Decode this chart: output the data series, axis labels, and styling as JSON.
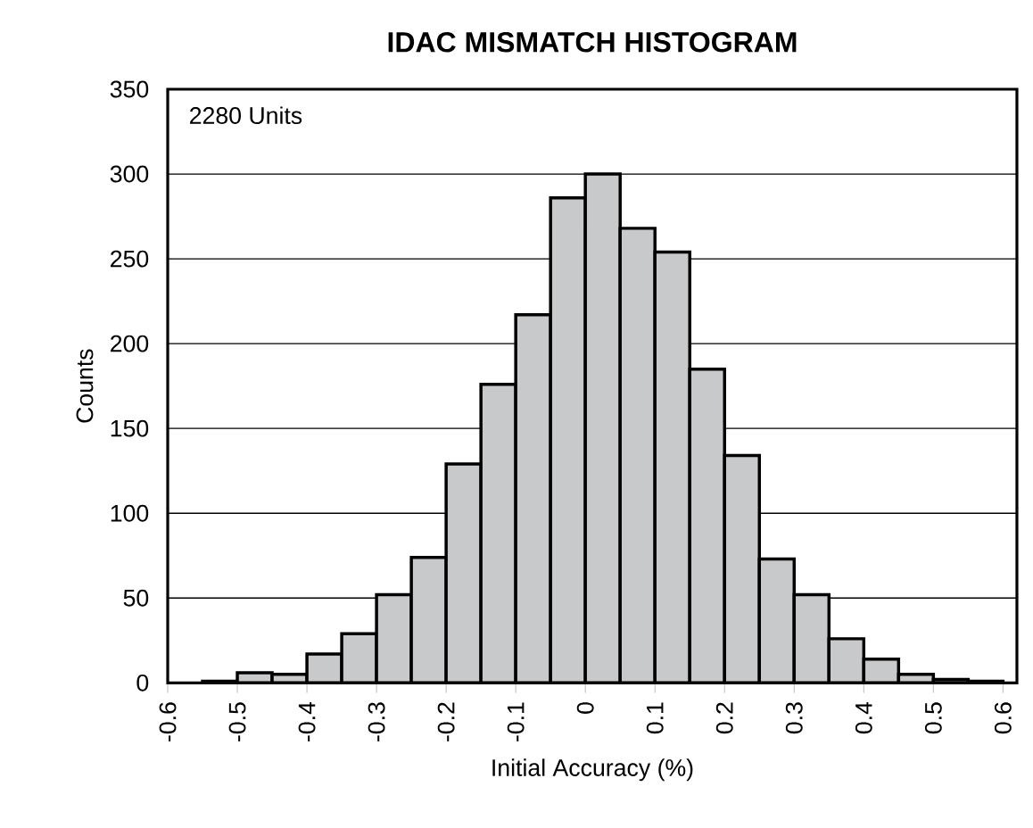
{
  "chart_data": {
    "type": "histogram",
    "title": "IDAC MISMATCH HISTOGRAM",
    "xlabel": "Initial Accuracy (%)",
    "ylabel": "Counts",
    "annotations": [
      "2280 Units"
    ],
    "bins": [
      -0.6,
      -0.55,
      -0.5,
      -0.45,
      -0.4,
      -0.35,
      -0.3,
      -0.25,
      -0.2,
      -0.15,
      -0.1,
      -0.05,
      0,
      0.05,
      0.1,
      0.15,
      0.2,
      0.25,
      0.3,
      0.35,
      0.4,
      0.45,
      0.5,
      0.55,
      0.6
    ],
    "values": [
      null,
      1,
      6,
      5,
      17,
      29,
      52,
      74,
      129,
      176,
      217,
      286,
      300,
      268,
      254,
      185,
      134,
      73,
      52,
      26,
      14,
      5,
      2,
      1
    ],
    "color": "#c8c9cb",
    "xlim": [
      -0.6,
      0.62
    ],
    "ylim": [
      0,
      350
    ],
    "xticks": [
      -0.6,
      -0.5,
      -0.4,
      -0.3,
      -0.2,
      -0.1,
      0,
      0.1,
      0.2,
      0.3,
      0.4,
      0.5,
      0.6
    ],
    "yticks": [
      0,
      50,
      100,
      150,
      200,
      250,
      300,
      350
    ],
    "grid": "y"
  }
}
